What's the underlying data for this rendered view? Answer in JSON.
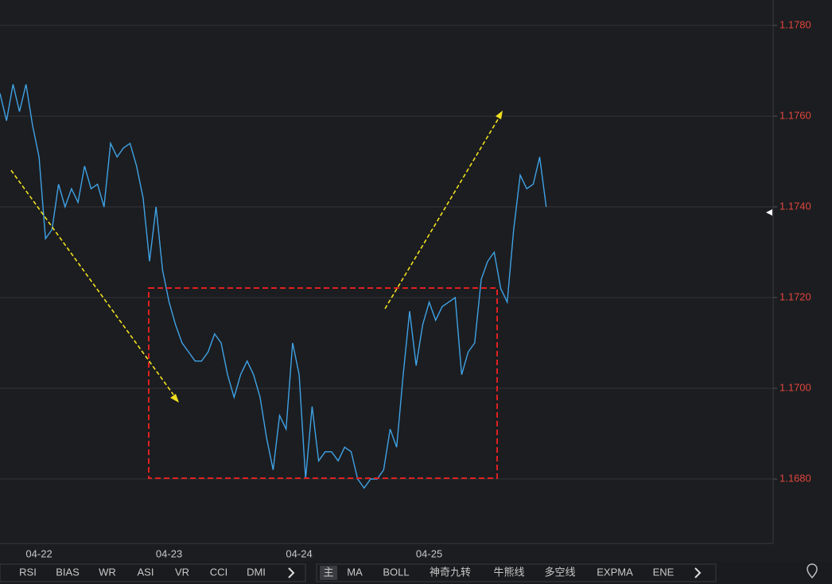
{
  "chart_data": {
    "type": "line",
    "categories": [
      null,
      null,
      null,
      null,
      null,
      null,
      "04-22",
      null,
      null,
      null,
      null,
      null,
      null,
      null,
      null,
      null,
      null,
      null,
      null,
      null,
      null,
      null,
      null,
      null,
      null,
      null,
      "04-23",
      null,
      null,
      null,
      null,
      null,
      null,
      null,
      null,
      null,
      null,
      null,
      null,
      null,
      null,
      null,
      null,
      null,
      null,
      null,
      "04-24",
      null,
      null,
      null,
      null,
      null,
      null,
      null,
      null,
      null,
      null,
      null,
      null,
      null,
      null,
      null,
      null,
      null,
      null,
      null,
      "04-25",
      null,
      null,
      null,
      null,
      null,
      null,
      null,
      null,
      null,
      null,
      null,
      null,
      null,
      null,
      null,
      null,
      null,
      null
    ],
    "series": [
      {
        "color": "#3fa2e6",
        "values": [
          1.1765,
          1.1759,
          1.1767,
          1.1761,
          1.1767,
          1.1758,
          1.1751,
          1.1733,
          1.1735,
          1.1745,
          1.174,
          1.1744,
          1.1741,
          1.1749,
          1.1744,
          1.1745,
          1.174,
          1.1754,
          1.1751,
          1.1753,
          1.1754,
          1.1749,
          1.1742,
          1.1728,
          1.174,
          1.1726,
          1.1719,
          1.1714,
          1.171,
          1.1708,
          1.1706,
          1.1706,
          1.1708,
          1.1712,
          1.171,
          1.1703,
          1.1698,
          1.1703,
          1.1706,
          1.1703,
          1.1698,
          1.1689,
          1.1682,
          1.1694,
          1.1691,
          1.171,
          1.1703,
          1.168,
          1.1696,
          1.1684,
          1.1686,
          1.1686,
          1.1684,
          1.1687,
          1.1686,
          1.168,
          1.1678,
          1.168,
          1.168,
          1.1682,
          1.1691,
          1.1687,
          1.1703,
          1.1717,
          1.1705,
          1.1714,
          1.1719,
          1.1715,
          1.1718,
          1.1719,
          1.172,
          1.1703,
          1.1708,
          1.171,
          1.1724,
          1.1728,
          1.173,
          1.1722,
          1.1719,
          1.1735,
          1.1747,
          1.1744,
          1.1745,
          1.1751,
          1.174
        ]
      }
    ],
    "ylim": [
      1.16658,
      1.17856
    ],
    "yticks": [
      {
        "value": 1.168,
        "label": "1.1680"
      },
      {
        "value": 1.17,
        "label": "1.1700"
      },
      {
        "value": 1.172,
        "label": "1.1720"
      },
      {
        "value": 1.174,
        "label": "1.1740"
      },
      {
        "value": 1.176,
        "label": "1.1760"
      },
      {
        "value": 1.178,
        "label": "1.1780"
      }
    ],
    "grid": true
  },
  "indicator_tabs": {
    "left": [
      "RSI",
      "BIAS",
      "WR",
      "ASI",
      "VR",
      "CCI",
      "DMI"
    ],
    "right": [
      "主",
      "MA",
      "BOLL",
      "神奇九转",
      "牛熊线",
      "多空线",
      "EXPMA",
      "ENE"
    ]
  }
}
